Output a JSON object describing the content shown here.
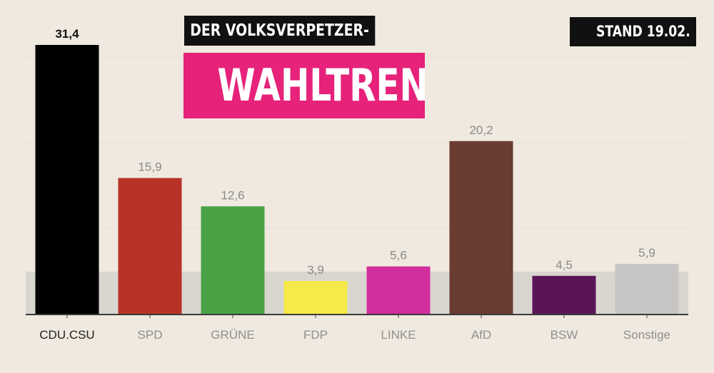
{
  "header": {
    "kicker": "DER VOLKSVERPETZER-",
    "title": "WAHLTREND",
    "date": "STAND 19.02."
  },
  "chart_data": {
    "type": "bar",
    "title": "WAHLTREND",
    "categories": [
      "CDU.CSU",
      "SPD",
      "GRÜNE",
      "FDP",
      "LINKE",
      "AfD",
      "BSW",
      "Sonstige"
    ],
    "values": [
      31.4,
      15.9,
      12.6,
      3.9,
      5.6,
      20.2,
      4.5,
      5.9
    ],
    "value_labels": [
      "31,4",
      "15,9",
      "12,6",
      "3,9",
      "5,6",
      "20,2",
      "4,5",
      "5,9"
    ],
    "colors": [
      "#000000",
      "#b83227",
      "#4aa247",
      "#f7e947",
      "#d22e9d",
      "#6b3c32",
      "#5a1458",
      "#c8c6c4"
    ],
    "highlight_index": 0,
    "threshold": 5,
    "ylim": [
      0,
      31.4
    ],
    "xlabel": "",
    "ylabel": ""
  }
}
